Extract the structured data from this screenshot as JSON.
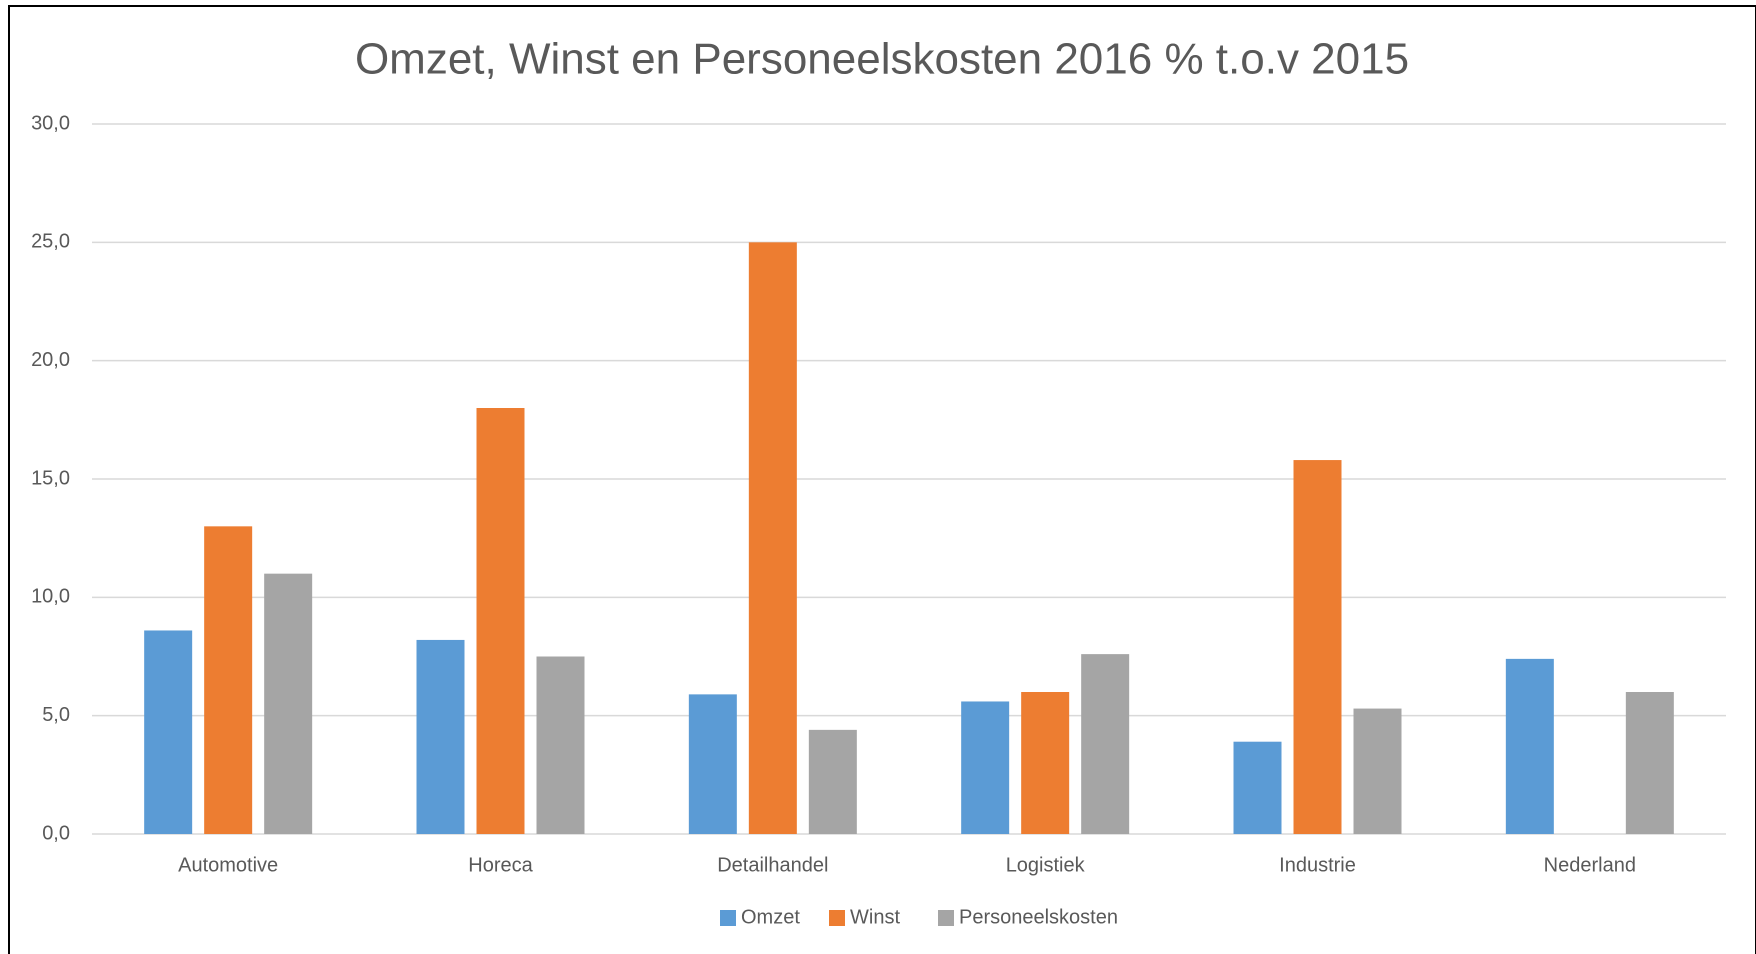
{
  "chart_data": {
    "type": "bar",
    "title": "Omzet, Winst en Personeelskosten 2016 % t.o.v 2015",
    "categories": [
      "Automotive",
      "Horeca",
      "Detailhandel",
      "Logistiek",
      "Industrie",
      "Nederland"
    ],
    "series": [
      {
        "name": "Omzet",
        "color": "#5b9bd5",
        "values": [
          8.6,
          8.2,
          5.9,
          5.6,
          3.9,
          7.4
        ]
      },
      {
        "name": "Winst",
        "color": "#ed7d31",
        "values": [
          13.0,
          18.0,
          25.0,
          6.0,
          15.8,
          null
        ]
      },
      {
        "name": "Personeelskosten",
        "color": "#a5a5a5",
        "values": [
          11.0,
          7.5,
          4.4,
          7.6,
          5.3,
          6.0
        ]
      }
    ],
    "ylim": [
      0,
      30
    ],
    "yticks": [
      {
        "value": 0,
        "label": "0,0"
      },
      {
        "value": 5,
        "label": "5,0"
      },
      {
        "value": 10,
        "label": "10,0"
      },
      {
        "value": 15,
        "label": "15,0"
      },
      {
        "value": 20,
        "label": "20,0"
      },
      {
        "value": 25,
        "label": "25,0"
      },
      {
        "value": 30,
        "label": "30,0"
      }
    ],
    "grid": true,
    "legend": "bottom"
  }
}
